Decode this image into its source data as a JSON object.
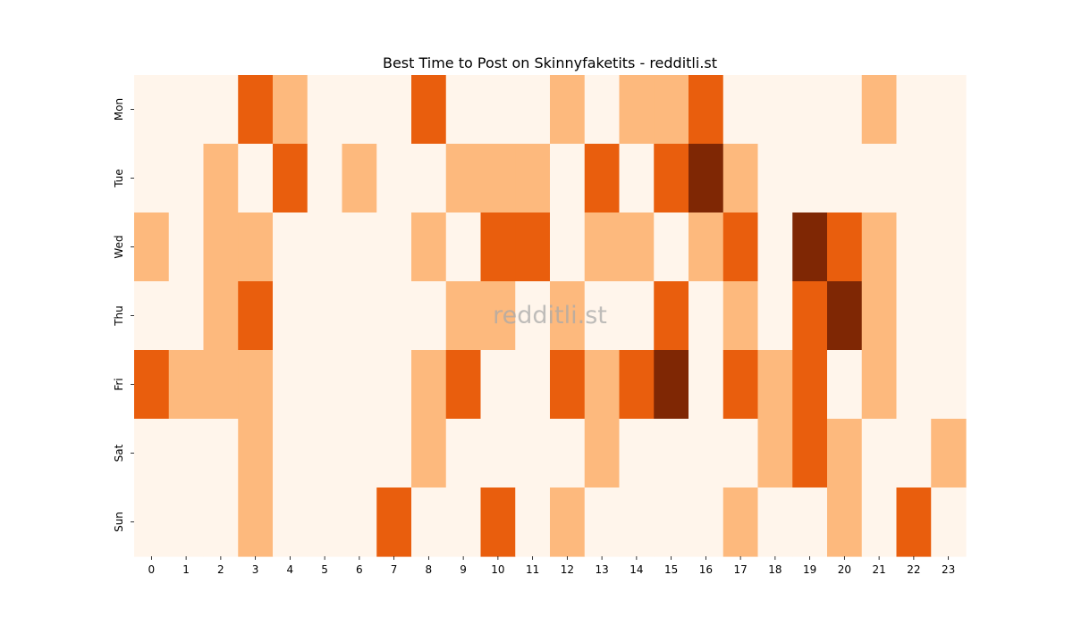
{
  "chart_data": {
    "type": "heatmap",
    "title": "Best Time to Post on Skinnyfaketits - redditli.st",
    "watermark": "redditli.st",
    "x_categories": [
      "0",
      "1",
      "2",
      "3",
      "4",
      "5",
      "6",
      "7",
      "8",
      "9",
      "10",
      "11",
      "12",
      "13",
      "14",
      "15",
      "16",
      "17",
      "18",
      "19",
      "20",
      "21",
      "22",
      "23"
    ],
    "y_categories": [
      "Mon",
      "Tue",
      "Wed",
      "Thu",
      "Fri",
      "Sat",
      "Sun"
    ],
    "values": [
      [
        0,
        0,
        0,
        2,
        1,
        0,
        0,
        0,
        2,
        0,
        0,
        0,
        1,
        0,
        1,
        1,
        2,
        0,
        0,
        0,
        0,
        1,
        0,
        0
      ],
      [
        0,
        0,
        1,
        0,
        2,
        0,
        1,
        0,
        0,
        1,
        1,
        1,
        0,
        2,
        0,
        2,
        3,
        1,
        0,
        0,
        0,
        0,
        0,
        0
      ],
      [
        1,
        0,
        1,
        1,
        0,
        0,
        0,
        0,
        1,
        0,
        2,
        2,
        0,
        1,
        1,
        0,
        1,
        2,
        0,
        3,
        2,
        1,
        0,
        0
      ],
      [
        0,
        0,
        1,
        2,
        0,
        0,
        0,
        0,
        0,
        1,
        1,
        0,
        1,
        0,
        0,
        2,
        0,
        1,
        0,
        2,
        3,
        1,
        0,
        0
      ],
      [
        2,
        1,
        1,
        1,
        0,
        0,
        0,
        0,
        1,
        2,
        0,
        0,
        2,
        1,
        2,
        3,
        0,
        2,
        1,
        2,
        0,
        1,
        0,
        0
      ],
      [
        0,
        0,
        0,
        1,
        0,
        0,
        0,
        0,
        1,
        0,
        0,
        0,
        0,
        1,
        0,
        0,
        0,
        0,
        1,
        2,
        1,
        0,
        0,
        1
      ],
      [
        0,
        0,
        0,
        1,
        0,
        0,
        0,
        2,
        0,
        0,
        2,
        0,
        1,
        0,
        0,
        0,
        0,
        1,
        0,
        0,
        1,
        0,
        2,
        0
      ]
    ],
    "color_scale": [
      "#fff5eb",
      "#fdb97d",
      "#e95e0d",
      "#7f2704"
    ],
    "grid": false,
    "legend": "none"
  }
}
